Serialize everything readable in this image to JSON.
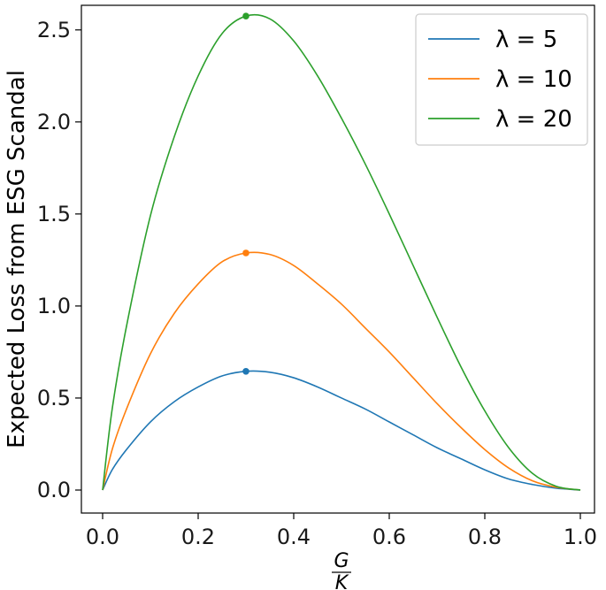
{
  "chart_data": {
    "type": "line",
    "title": "",
    "xlabel_numerator": "G",
    "xlabel_denominator": "K",
    "ylabel": "Expected Loss from ESG Scandal",
    "xlim": [
      0.0,
      1.0
    ],
    "ylim": [
      0.0,
      2.6
    ],
    "xticks": [
      "0.0",
      "0.2",
      "0.4",
      "0.6",
      "0.8",
      "1.0"
    ],
    "yticks": [
      "0.0",
      "0.5",
      "1.0",
      "1.5",
      "2.0",
      "2.5"
    ],
    "grid": false,
    "legend_position": "top-right",
    "x": [
      0.0,
      0.02,
      0.05,
      0.1,
      0.15,
      0.2,
      0.25,
      0.3,
      0.35,
      0.4,
      0.45,
      0.5,
      0.55,
      0.6,
      0.65,
      0.7,
      0.75,
      0.8,
      0.85,
      0.9,
      0.95,
      1.0
    ],
    "series": [
      {
        "name": "λ = 5",
        "color": "#1f77b4",
        "values": [
          0.0,
          0.11,
          0.22,
          0.37,
          0.48,
          0.56,
          0.62,
          0.645,
          0.64,
          0.61,
          0.56,
          0.5,
          0.44,
          0.37,
          0.3,
          0.23,
          0.17,
          0.11,
          0.06,
          0.03,
          0.01,
          0.0
        ],
        "peak": {
          "x": 0.3,
          "y": 0.645
        }
      },
      {
        "name": "λ = 10",
        "color": "#ff7f0e",
        "values": [
          0.0,
          0.22,
          0.44,
          0.74,
          0.96,
          1.12,
          1.24,
          1.288,
          1.28,
          1.22,
          1.12,
          1.01,
          0.88,
          0.75,
          0.61,
          0.47,
          0.34,
          0.22,
          0.12,
          0.05,
          0.015,
          0.0
        ],
        "peak": {
          "x": 0.3,
          "y": 1.288
        }
      },
      {
        "name": "λ = 20",
        "color": "#2ca02c",
        "values": [
          0.0,
          0.44,
          0.89,
          1.49,
          1.92,
          2.25,
          2.48,
          2.575,
          2.56,
          2.44,
          2.25,
          2.02,
          1.77,
          1.5,
          1.22,
          0.94,
          0.67,
          0.43,
          0.23,
          0.09,
          0.02,
          0.0
        ],
        "peak": {
          "x": 0.3,
          "y": 2.575
        }
      }
    ]
  }
}
